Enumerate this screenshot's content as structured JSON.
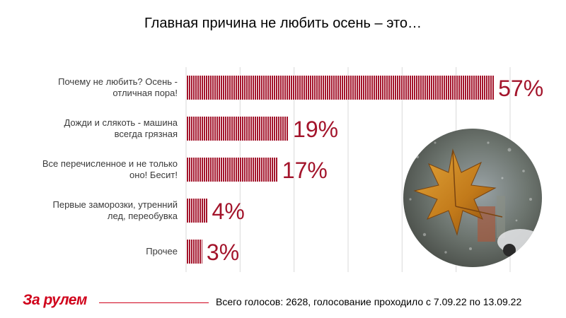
{
  "title": "Главная причина не любить осень – это…",
  "chart_data": {
    "type": "bar",
    "orientation": "horizontal",
    "categories": [
      [
        "Почему не любить? Осень -",
        "отличная пора!"
      ],
      [
        "Дожди и слякоть - машина",
        "всегда грязная"
      ],
      [
        "Все перечисленное и не только",
        "оно! Бесит!"
      ],
      [
        "Первые заморозки, утренний",
        "лед, переобувка"
      ],
      [
        "Прочее"
      ]
    ],
    "values": [
      57,
      19,
      17,
      4,
      3
    ],
    "value_labels": [
      "57%",
      "19%",
      "17%",
      "4%",
      "3%"
    ],
    "xlim": [
      0,
      60
    ],
    "bar_color": "#a3142b",
    "label_color": "#a3142b",
    "grid": true
  },
  "logo": "За рулем",
  "footer": "Всего голосов: 2628, голосование проходило с 7.09.22 по 13.09.22"
}
